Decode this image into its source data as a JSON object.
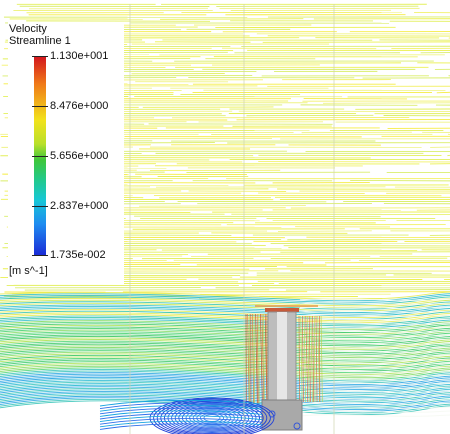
{
  "legend": {
    "title": "Velocity",
    "subtitle": "Streamline 1",
    "unit": "[m s^-1]",
    "ticks": [
      "1.130e+001",
      "8.476e+000",
      "5.656e+000",
      "2.837e+000",
      "1.735e-002"
    ],
    "colors": [
      "#d2141e",
      "#f07a18",
      "#f2e21c",
      "#b9e02a",
      "#3ec73a",
      "#22c98c",
      "#17c7d6",
      "#1f8cf0",
      "#1a28d6"
    ]
  }
}
